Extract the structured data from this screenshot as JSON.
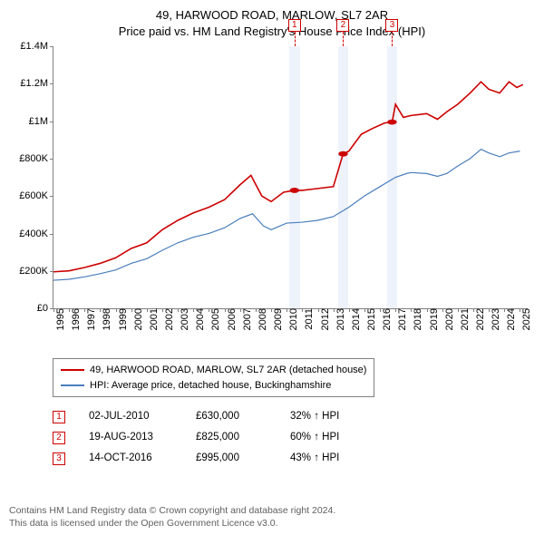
{
  "title_line1": "49, HARWOOD ROAD, MARLOW, SL7 2AR",
  "title_line2": "Price paid vs. HM Land Registry's House Price Index (HPI)",
  "chart": {
    "type": "line",
    "background_color": "#ffffff",
    "band_color": "#eef2fb",
    "axis_color": "#808080",
    "marker_color": "#cc0000",
    "xlim": [
      1995,
      2025.5
    ],
    "ylim": [
      0,
      1400000
    ],
    "ytick_step": 200000,
    "yticks": [
      {
        "v": 0,
        "label": "£0"
      },
      {
        "v": 200000,
        "label": "£200K"
      },
      {
        "v": 400000,
        "label": "£400K"
      },
      {
        "v": 600000,
        "label": "£600K"
      },
      {
        "v": 800000,
        "label": "£800K"
      },
      {
        "v": 1000000,
        "label": "£1M"
      },
      {
        "v": 1200000,
        "label": "£1.2M"
      },
      {
        "v": 1400000,
        "label": "£1.4M"
      }
    ],
    "xticks": [
      1995,
      1996,
      1997,
      1998,
      1999,
      2000,
      2001,
      2002,
      2003,
      2004,
      2005,
      2006,
      2007,
      2008,
      2009,
      2010,
      2011,
      2012,
      2013,
      2014,
      2015,
      2016,
      2017,
      2018,
      2019,
      2020,
      2021,
      2022,
      2023,
      2024,
      2025
    ],
    "series": [
      {
        "name": "property",
        "label": "49, HARWOOD ROAD, MARLOW, SL7 2AR (detached house)",
        "color": "#cc0000",
        "width": 1.6,
        "data": [
          [
            1995,
            195000
          ],
          [
            1996,
            200000
          ],
          [
            1997,
            218000
          ],
          [
            1998,
            240000
          ],
          [
            1999,
            270000
          ],
          [
            2000,
            320000
          ],
          [
            2001,
            350000
          ],
          [
            2002,
            420000
          ],
          [
            2003,
            470000
          ],
          [
            2004,
            510000
          ],
          [
            2005,
            540000
          ],
          [
            2006,
            580000
          ],
          [
            2007,
            660000
          ],
          [
            2007.7,
            710000
          ],
          [
            2008.4,
            600000
          ],
          [
            2009,
            570000
          ],
          [
            2009.8,
            620000
          ],
          [
            2010.5,
            630000
          ],
          [
            2011,
            630000
          ],
          [
            2012,
            640000
          ],
          [
            2013,
            650000
          ],
          [
            2013.63,
            825000
          ],
          [
            2014,
            840000
          ],
          [
            2014.8,
            930000
          ],
          [
            2015.5,
            960000
          ],
          [
            2016.3,
            990000
          ],
          [
            2016.78,
            995000
          ],
          [
            2017,
            1090000
          ],
          [
            2017.5,
            1020000
          ],
          [
            2018,
            1030000
          ],
          [
            2019,
            1040000
          ],
          [
            2019.7,
            1010000
          ],
          [
            2020.3,
            1050000
          ],
          [
            2021,
            1090000
          ],
          [
            2021.8,
            1150000
          ],
          [
            2022.5,
            1210000
          ],
          [
            2023,
            1170000
          ],
          [
            2023.7,
            1150000
          ],
          [
            2024.3,
            1210000
          ],
          [
            2024.8,
            1180000
          ],
          [
            2025.2,
            1195000
          ]
        ]
      },
      {
        "name": "hpi",
        "label": "HPI: Average price, detached house, Buckinghamshire",
        "color": "#4a7ebb",
        "width": 1.2,
        "data": [
          [
            1995,
            150000
          ],
          [
            1996,
            155000
          ],
          [
            1997,
            168000
          ],
          [
            1998,
            185000
          ],
          [
            1999,
            205000
          ],
          [
            2000,
            240000
          ],
          [
            2001,
            265000
          ],
          [
            2002,
            310000
          ],
          [
            2003,
            350000
          ],
          [
            2004,
            380000
          ],
          [
            2005,
            400000
          ],
          [
            2006,
            430000
          ],
          [
            2007,
            480000
          ],
          [
            2007.8,
            505000
          ],
          [
            2008.5,
            440000
          ],
          [
            2009,
            420000
          ],
          [
            2010,
            455000
          ],
          [
            2011,
            460000
          ],
          [
            2012,
            470000
          ],
          [
            2013,
            490000
          ],
          [
            2014,
            540000
          ],
          [
            2015,
            600000
          ],
          [
            2016,
            650000
          ],
          [
            2017,
            700000
          ],
          [
            2017.7,
            720000
          ],
          [
            2018,
            725000
          ],
          [
            2019,
            720000
          ],
          [
            2019.7,
            705000
          ],
          [
            2020.3,
            720000
          ],
          [
            2021,
            760000
          ],
          [
            2021.8,
            800000
          ],
          [
            2022.5,
            850000
          ],
          [
            2023,
            830000
          ],
          [
            2023.7,
            810000
          ],
          [
            2024.3,
            830000
          ],
          [
            2025,
            840000
          ]
        ]
      }
    ],
    "sale_points": [
      {
        "n": "1",
        "x": 2010.5,
        "y": 630000
      },
      {
        "n": "2",
        "x": 2013.63,
        "y": 825000
      },
      {
        "n": "3",
        "x": 2016.78,
        "y": 995000
      }
    ]
  },
  "legend": {
    "items": [
      {
        "color": "#cc0000",
        "label": "49, HARWOOD ROAD, MARLOW, SL7 2AR (detached house)"
      },
      {
        "color": "#4a7ebb",
        "label": "HPI: Average price, detached house, Buckinghamshire"
      }
    ]
  },
  "sales": [
    {
      "n": "1",
      "date": "02-JUL-2010",
      "price": "£630,000",
      "delta": "32% ↑ HPI"
    },
    {
      "n": "2",
      "date": "19-AUG-2013",
      "price": "£825,000",
      "delta": "60% ↑ HPI"
    },
    {
      "n": "3",
      "date": "14-OCT-2016",
      "price": "£995,000",
      "delta": "43% ↑ HPI"
    }
  ],
  "footer_line1": "Contains HM Land Registry data © Crown copyright and database right 2024.",
  "footer_line2": "This data is licensed under the Open Government Licence v3.0."
}
